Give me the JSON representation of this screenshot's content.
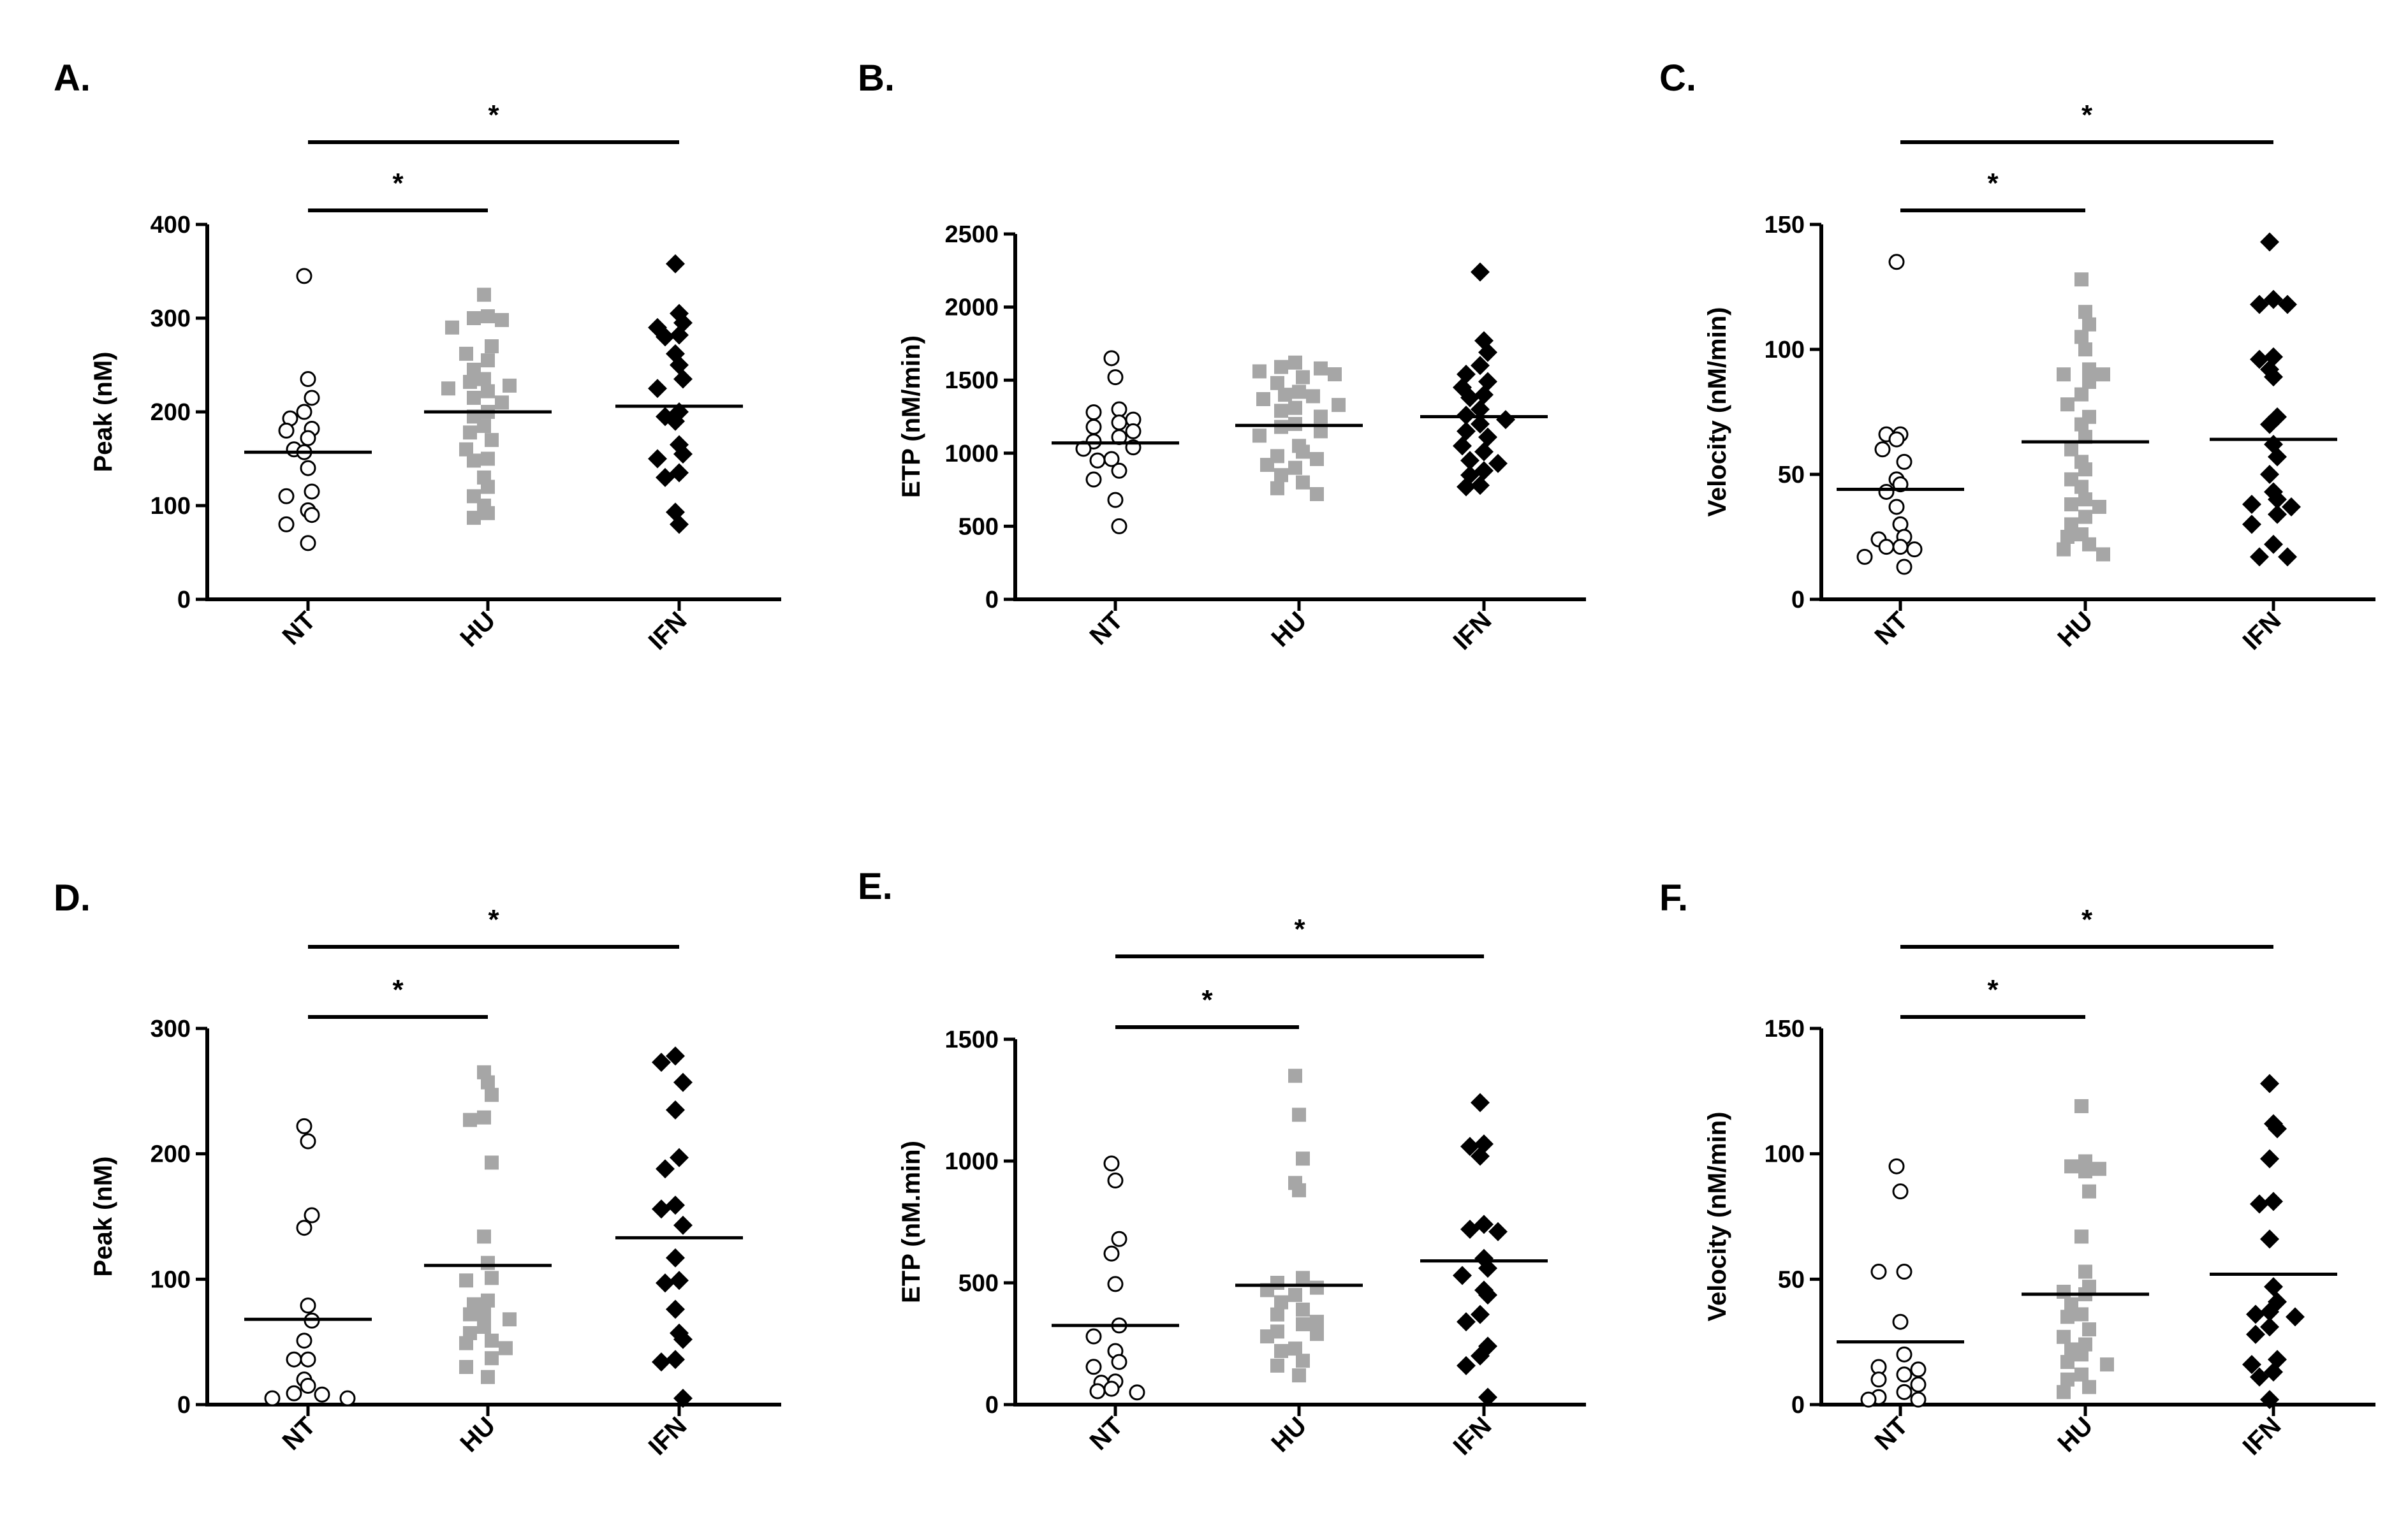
{
  "figure": {
    "colors": {
      "NT": "#000000",
      "HU": "#a6a6a6",
      "IFN": "#000000",
      "axis": "#000000"
    },
    "marker_names": {
      "NT": "open-circle",
      "HU": "gray-square",
      "IFN": "black-diamond"
    }
  },
  "chart_data": [
    {
      "id": "A",
      "panel_label": "A.",
      "type": "scatter",
      "ylabel": "Peak (nM)",
      "ylim": [
        0,
        400
      ],
      "yticks": [
        0,
        100,
        200,
        300,
        400
      ],
      "categories": [
        "NT",
        "HU",
        "IFN"
      ],
      "series": [
        {
          "name": "NT",
          "mean": 157,
          "values": [
            345,
            235,
            215,
            200,
            193,
            182,
            180,
            172,
            160,
            157,
            140,
            115,
            110,
            95,
            90,
            80,
            60
          ]
        },
        {
          "name": "HU",
          "mean": 200,
          "values": [
            325,
            302,
            300,
            298,
            290,
            270,
            262,
            255,
            245,
            235,
            232,
            228,
            225,
            222,
            215,
            210,
            200,
            195,
            185,
            178,
            170,
            160,
            150,
            148,
            130,
            120,
            110,
            100,
            92,
            87
          ]
        },
        {
          "name": "IFN",
          "mean": 206,
          "values": [
            358,
            305,
            295,
            290,
            282,
            280,
            262,
            250,
            235,
            225,
            200,
            195,
            190,
            165,
            155,
            150,
            135,
            130,
            93,
            80
          ]
        }
      ],
      "significance": [
        {
          "from": "NT",
          "to": "HU",
          "label": "*"
        },
        {
          "from": "NT",
          "to": "IFN",
          "label": "*"
        }
      ]
    },
    {
      "id": "B",
      "panel_label": "B.",
      "type": "scatter",
      "ylabel": "ETP (nM/min)",
      "ylim": [
        0,
        2500
      ],
      "yticks": [
        0,
        500,
        1000,
        1500,
        2000,
        2500
      ],
      "categories": [
        "NT",
        "HU",
        "IFN"
      ],
      "series": [
        {
          "name": "NT",
          "mean": 1070,
          "values": [
            1650,
            1520,
            1300,
            1280,
            1230,
            1210,
            1180,
            1150,
            1110,
            1080,
            1040,
            1030,
            960,
            950,
            880,
            820,
            680,
            500
          ]
        },
        {
          "name": "HU",
          "mean": 1190,
          "values": [
            1620,
            1590,
            1580,
            1560,
            1540,
            1520,
            1480,
            1420,
            1400,
            1390,
            1370,
            1330,
            1310,
            1290,
            1250,
            1200,
            1180,
            1150,
            1120,
            1050,
            1010,
            980,
            960,
            920,
            900,
            850,
            800,
            760,
            720
          ]
        },
        {
          "name": "IFN",
          "mean": 1250,
          "values": [
            2240,
            1770,
            1690,
            1600,
            1540,
            1490,
            1450,
            1400,
            1380,
            1300,
            1260,
            1230,
            1200,
            1150,
            1110,
            1050,
            1010,
            950,
            930,
            880,
            850,
            780,
            770
          ]
        }
      ],
      "significance": []
    },
    {
      "id": "C",
      "panel_label": "C.",
      "type": "scatter",
      "ylabel": "Velocity (nM/min)",
      "ylim": [
        0,
        150
      ],
      "yticks": [
        0,
        50,
        100,
        150
      ],
      "categories": [
        "NT",
        "HU",
        "IFN"
      ],
      "series": [
        {
          "name": "NT",
          "mean": 44,
          "values": [
            135,
            66,
            66,
            64,
            60,
            55,
            48,
            46,
            43,
            37,
            30,
            25,
            24,
            21,
            21,
            20,
            17,
            13
          ]
        },
        {
          "name": "HU",
          "mean": 63,
          "values": [
            128,
            115,
            110,
            105,
            100,
            92,
            90,
            90,
            87,
            82,
            78,
            73,
            70,
            65,
            60,
            55,
            52,
            48,
            45,
            40,
            38,
            37,
            33,
            30,
            26,
            25,
            22,
            20,
            18
          ]
        },
        {
          "name": "IFN",
          "mean": 64,
          "values": [
            143,
            120,
            118,
            118,
            97,
            96,
            92,
            89,
            73,
            70,
            62,
            57,
            50,
            43,
            40,
            38,
            37,
            34,
            30,
            22,
            17,
            17
          ]
        }
      ],
      "significance": [
        {
          "from": "NT",
          "to": "HU",
          "label": "*"
        },
        {
          "from": "NT",
          "to": "IFN",
          "label": "*"
        }
      ]
    },
    {
      "id": "D",
      "panel_label": "D.",
      "type": "scatter",
      "ylabel": "Peak (nM)",
      "ylim": [
        0,
        300
      ],
      "yticks": [
        0,
        100,
        200,
        300
      ],
      "categories": [
        "NT",
        "HU",
        "IFN"
      ],
      "series": [
        {
          "name": "NT",
          "mean": 68,
          "values": [
            222,
            210,
            151,
            141,
            79,
            67,
            51,
            36,
            36,
            20,
            15,
            9,
            8,
            5,
            5
          ]
        },
        {
          "name": "HU",
          "mean": 111,
          "values": [
            265,
            257,
            247,
            229,
            227,
            193,
            134,
            113,
            101,
            99,
            83,
            80,
            73,
            72,
            68,
            62,
            57,
            51,
            49,
            45,
            37,
            30,
            22
          ]
        },
        {
          "name": "IFN",
          "mean": 133,
          "values": [
            278,
            273,
            257,
            235,
            197,
            188,
            159,
            156,
            143,
            117,
            99,
            97,
            76,
            57,
            52,
            36,
            34,
            5
          ]
        }
      ],
      "significance": [
        {
          "from": "NT",
          "to": "HU",
          "label": "*"
        },
        {
          "from": "NT",
          "to": "IFN",
          "label": "*"
        }
      ]
    },
    {
      "id": "E",
      "panel_label": "E.",
      "type": "scatter",
      "ylabel": "ETP (nM.min)",
      "ylim": [
        0,
        1500
      ],
      "yticks": [
        0,
        500,
        1000,
        1500
      ],
      "categories": [
        "NT",
        "HU",
        "IFN"
      ],
      "series": [
        {
          "name": "NT",
          "mean": 325,
          "values": [
            990,
            920,
            680,
            620,
            495,
            325,
            280,
            220,
            175,
            155,
            95,
            90,
            65,
            55,
            50
          ]
        },
        {
          "name": "HU",
          "mean": 490,
          "values": [
            1350,
            1190,
            1010,
            910,
            880,
            520,
            500,
            480,
            470,
            450,
            420,
            390,
            370,
            340,
            330,
            300,
            290,
            280,
            230,
            220,
            180,
            160,
            120
          ]
        },
        {
          "name": "IFN",
          "mean": 590,
          "values": [
            1240,
            1070,
            1060,
            1020,
            740,
            720,
            710,
            600,
            560,
            530,
            470,
            450,
            370,
            340,
            240,
            200,
            160,
            30
          ]
        }
      ],
      "significance": [
        {
          "from": "NT",
          "to": "HU",
          "label": "*"
        },
        {
          "from": "NT",
          "to": "IFN",
          "label": "*"
        }
      ]
    },
    {
      "id": "F",
      "panel_label": "F.",
      "type": "scatter",
      "ylabel": "Velocity (nM/min)",
      "ylim": [
        0,
        150
      ],
      "yticks": [
        0,
        50,
        100,
        150
      ],
      "categories": [
        "NT",
        "HU",
        "IFN"
      ],
      "series": [
        {
          "name": "NT",
          "mean": 25,
          "values": [
            95,
            85,
            53,
            53,
            33,
            20,
            15,
            14,
            12,
            10,
            8,
            5,
            3,
            2,
            2
          ]
        },
        {
          "name": "HU",
          "mean": 44,
          "values": [
            119,
            97,
            95,
            94,
            93,
            85,
            67,
            53,
            47,
            45,
            44,
            40,
            36,
            35,
            30,
            27,
            24,
            22,
            20,
            17,
            16,
            12,
            10,
            7,
            5
          ]
        },
        {
          "name": "IFN",
          "mean": 52,
          "values": [
            128,
            112,
            110,
            98,
            81,
            80,
            66,
            47,
            41,
            37,
            36,
            35,
            31,
            28,
            18,
            16,
            13,
            11,
            2
          ]
        }
      ],
      "significance": [
        {
          "from": "NT",
          "to": "HU",
          "label": "*"
        },
        {
          "from": "NT",
          "to": "IFN",
          "label": "*"
        }
      ]
    }
  ]
}
